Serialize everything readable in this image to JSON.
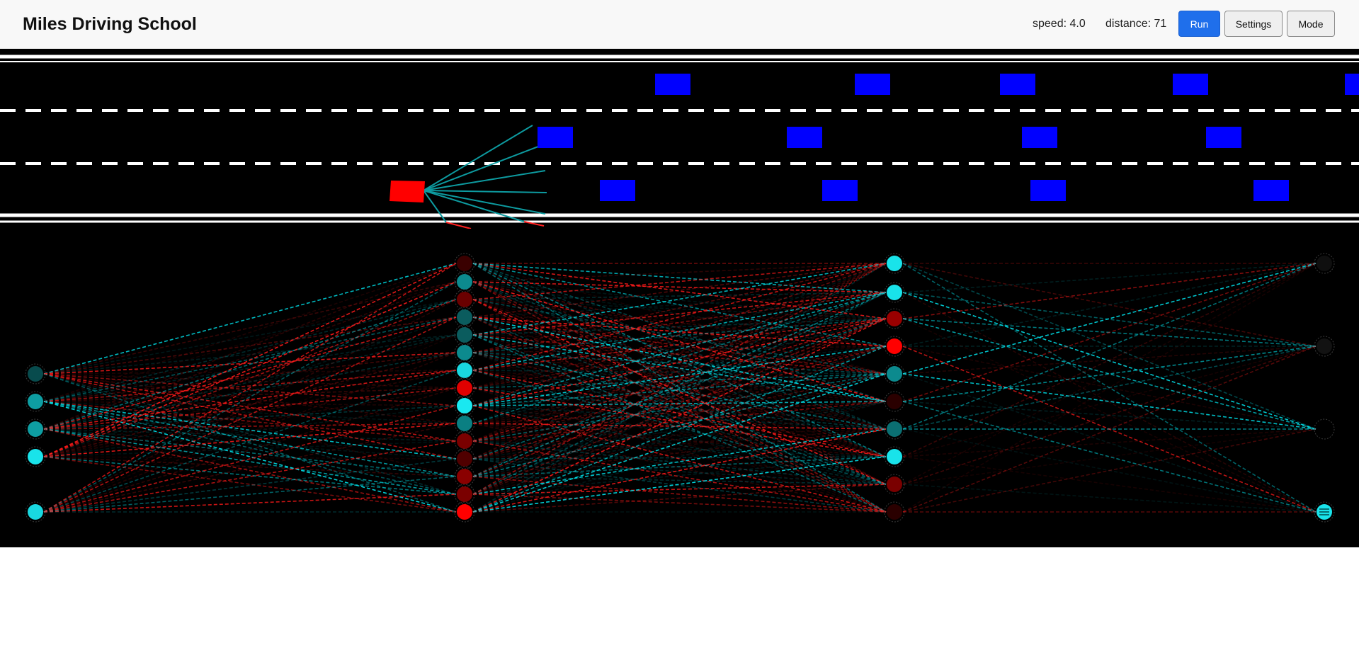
{
  "app": {
    "title": "Miles Driving School"
  },
  "stats": {
    "speed_label": "speed: 4.0",
    "distance_label": "distance: 71",
    "speed": 4.0,
    "distance": 71
  },
  "toolbar": {
    "run_label": "Run",
    "settings_label": "Settings",
    "mode_label": "Mode"
  },
  "simulation": {
    "lane_count": 3,
    "player_car_lane": 3,
    "sensor_ray_count": 8,
    "traffic_cars_visible": 13
  },
  "network": {
    "layers": [
      {
        "name": "input",
        "node_count": 5
      },
      {
        "name": "hidden-1",
        "node_count": 15
      },
      {
        "name": "hidden-2",
        "node_count": 10
      },
      {
        "name": "output",
        "node_count": 4
      }
    ]
  },
  "colors": {
    "accent": "#1f6feb",
    "player_car": "#ff0000",
    "traffic_car": "#0000ff",
    "road": "#000000",
    "lane_marking": "#ffffff",
    "sensor_ray": "#0d9ba0",
    "positive_weight": "#00e5ee",
    "negative_weight": "#ff1a1a"
  }
}
